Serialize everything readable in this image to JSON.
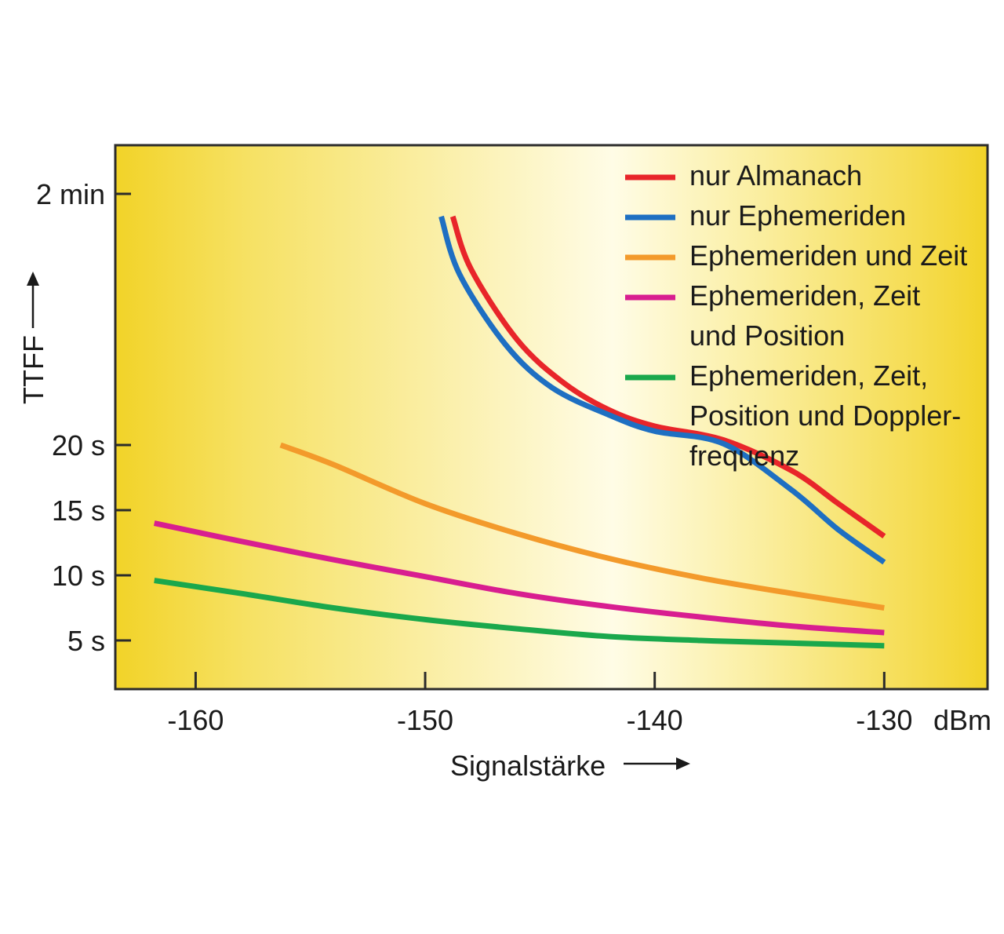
{
  "chart_data": {
    "type": "line",
    "title": "",
    "xlabel": "Signalstärke",
    "xunit": "dBm",
    "ylabel": "TTFF",
    "xlim": [
      -163.5,
      -125.5
    ],
    "xticks": [
      {
        "value": -160,
        "label": "-160"
      },
      {
        "value": -150,
        "label": "-150"
      },
      {
        "value": -140,
        "label": "-140"
      },
      {
        "value": -130,
        "label": "-130"
      }
    ],
    "yticks": [
      {
        "label": "2 min"
      },
      {
        "label": "20 s"
      },
      {
        "label": "15 s"
      },
      {
        "label": "10 s"
      },
      {
        "label": "5 s"
      }
    ],
    "y_scale_note": "non-linear axis",
    "grid": false,
    "legend_position": "top-right",
    "series": [
      {
        "name": "nur Almanach",
        "color": "#e8252a",
        "points": [
          [
            -148.8,
            111
          ],
          [
            -148,
            90
          ],
          [
            -146,
            62
          ],
          [
            -144,
            45
          ],
          [
            -142,
            34
          ],
          [
            -140,
            27.5
          ],
          [
            -137,
            22
          ],
          [
            -134,
            18
          ],
          [
            -132,
            15.5
          ],
          [
            -130,
            13
          ]
        ]
      },
      {
        "name": "nur Ephemeriden",
        "color": "#1e6fc2",
        "points": [
          [
            -149.3,
            111
          ],
          [
            -148.5,
            88
          ],
          [
            -146.5,
            60
          ],
          [
            -144.5,
            43
          ],
          [
            -142,
            32
          ],
          [
            -140,
            25.5
          ],
          [
            -137,
            20.5
          ],
          [
            -134,
            16.5
          ],
          [
            -132,
            13.5
          ],
          [
            -130,
            11
          ]
        ]
      },
      {
        "name": "Ephemeriden und Zeit",
        "color": "#f39a2b",
        "points": [
          [
            -156.3,
            20
          ],
          [
            -154,
            18.5
          ],
          [
            -150,
            15.5
          ],
          [
            -146,
            13.2
          ],
          [
            -142,
            11.3
          ],
          [
            -138,
            9.8
          ],
          [
            -134,
            8.6
          ],
          [
            -130,
            7.5
          ]
        ]
      },
      {
        "name": "Ephemeriden, Zeit und Position",
        "color": "#d81e90",
        "points": [
          [
            -161.8,
            14
          ],
          [
            -158,
            12.6
          ],
          [
            -154,
            11.2
          ],
          [
            -150,
            9.9
          ],
          [
            -146,
            8.6
          ],
          [
            -142,
            7.6
          ],
          [
            -138,
            6.8
          ],
          [
            -134,
            6.1
          ],
          [
            -130,
            5.6
          ]
        ]
      },
      {
        "name": "Ephemeriden, Zeit, Position und Dopplerfrequenz",
        "color": "#1aa84c",
        "points": [
          [
            -161.8,
            9.6
          ],
          [
            -158,
            8.6
          ],
          [
            -154,
            7.5
          ],
          [
            -150,
            6.6
          ],
          [
            -146,
            5.9
          ],
          [
            -142,
            5.3
          ],
          [
            -138,
            5.0
          ],
          [
            -134,
            4.8
          ],
          [
            -130,
            4.6
          ]
        ]
      }
    ]
  },
  "legend": [
    {
      "lines": [
        "nur Almanach"
      ],
      "color": "#e8252a"
    },
    {
      "lines": [
        "nur Ephemeriden"
      ],
      "color": "#1e6fc2"
    },
    {
      "lines": [
        "Ephemeriden und Zeit"
      ],
      "color": "#f39a2b"
    },
    {
      "lines": [
        "Ephemeriden, Zeit",
        "und Position"
      ],
      "color": "#d81e90"
    },
    {
      "lines": [
        "Ephemeriden, Zeit,",
        "Position und Doppler-",
        "frequenz"
      ],
      "color": "#1aa84c"
    }
  ],
  "colors": {
    "plot_edge": "#f2d328",
    "plot_center": "#fffce6",
    "frame": "#2b2b2b"
  }
}
